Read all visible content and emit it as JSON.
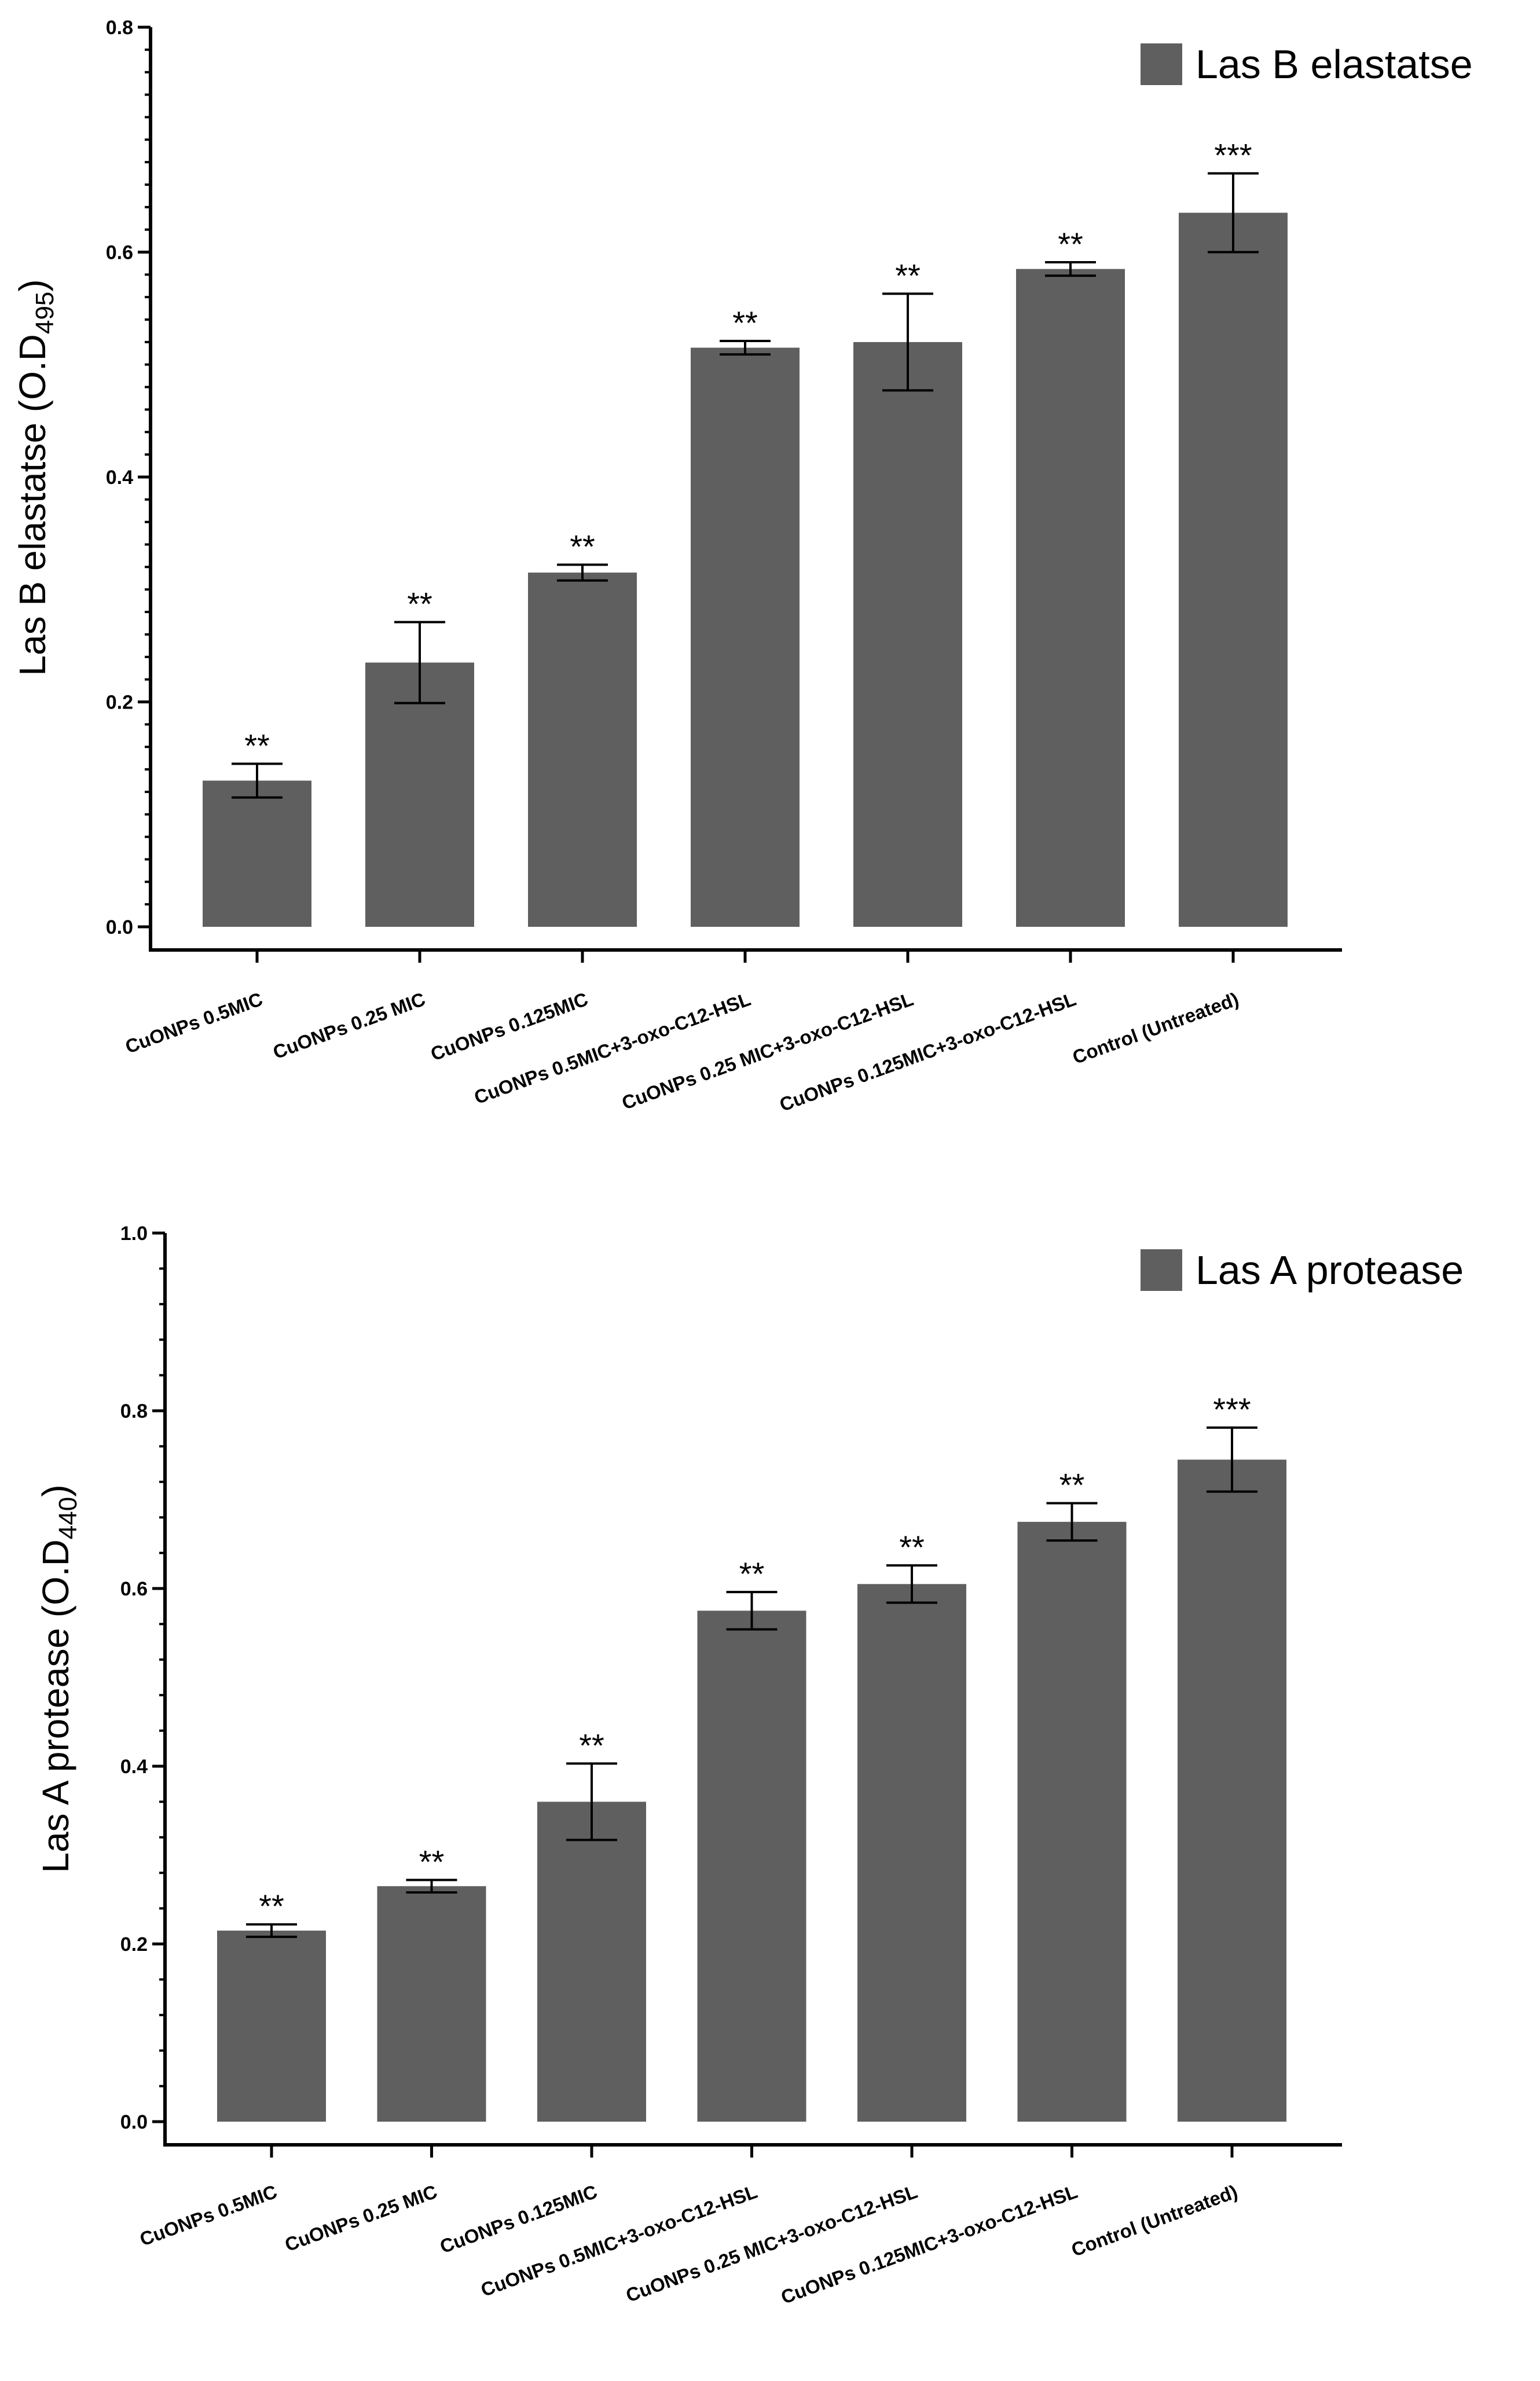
{
  "chart_data": [
    {
      "type": "bar",
      "title": "",
      "legend": "Las B elastatse",
      "legend_position": "top-right",
      "ylabel": {
        "main": "Las B elastatse (O.D",
        "sub": "495",
        "close": ")"
      },
      "xlabel": "",
      "ylim": [
        0,
        0.8
      ],
      "yticks": [
        "0.0",
        "0.2",
        "0.4",
        "0.6",
        "0.8"
      ],
      "categories": [
        "CuONPs 0.5MIC",
        "CuONPs 0.25 MIC",
        "CuONPs 0.125MIC",
        "CuONPs 0.5MIC+3-oxo-C12-HSL",
        "CuONPs 0.25 MIC+3-oxo-C12-HSL",
        "CuONPs 0.125MIC+3-oxo-C12-HSL",
        "Control (Untreated)"
      ],
      "values": [
        0.13,
        0.235,
        0.315,
        0.515,
        0.52,
        0.585,
        0.635
      ],
      "errors": [
        0.015,
        0.036,
        0.007,
        0.006,
        0.043,
        0.006,
        0.035
      ],
      "significance": [
        "**",
        "**",
        "**",
        "**",
        "**",
        "**",
        "***"
      ],
      "bar_color": "#5f5f5f"
    },
    {
      "type": "bar",
      "title": "",
      "legend": "Las A protease",
      "legend_position": "top-right",
      "ylabel": {
        "main": "Las A protease (O.D",
        "sub": "440",
        "close": ")"
      },
      "xlabel": "",
      "ylim": [
        0,
        1.0
      ],
      "yticks": [
        "0.0",
        "0.2",
        "0.4",
        "0.6",
        "0.8",
        "1.0"
      ],
      "categories": [
        "CuONPs 0.5MIC",
        "CuONPs 0.25 MIC",
        "CuONPs 0.125MIC",
        "CuONPs 0.5MIC+3-oxo-C12-HSL",
        "CuONPs 0.25 MIC+3-oxo-C12-HSL",
        "CuONPs 0.125MIC+3-oxo-C12-HSL",
        "Control (Untreated)"
      ],
      "values": [
        0.215,
        0.265,
        0.36,
        0.575,
        0.605,
        0.675,
        0.745
      ],
      "errors": [
        0.007,
        0.007,
        0.043,
        0.021,
        0.021,
        0.021,
        0.036
      ],
      "significance": [
        "**",
        "**",
        "**",
        "**",
        "**",
        "**",
        "***"
      ],
      "bar_color": "#5f5f5f"
    }
  ]
}
